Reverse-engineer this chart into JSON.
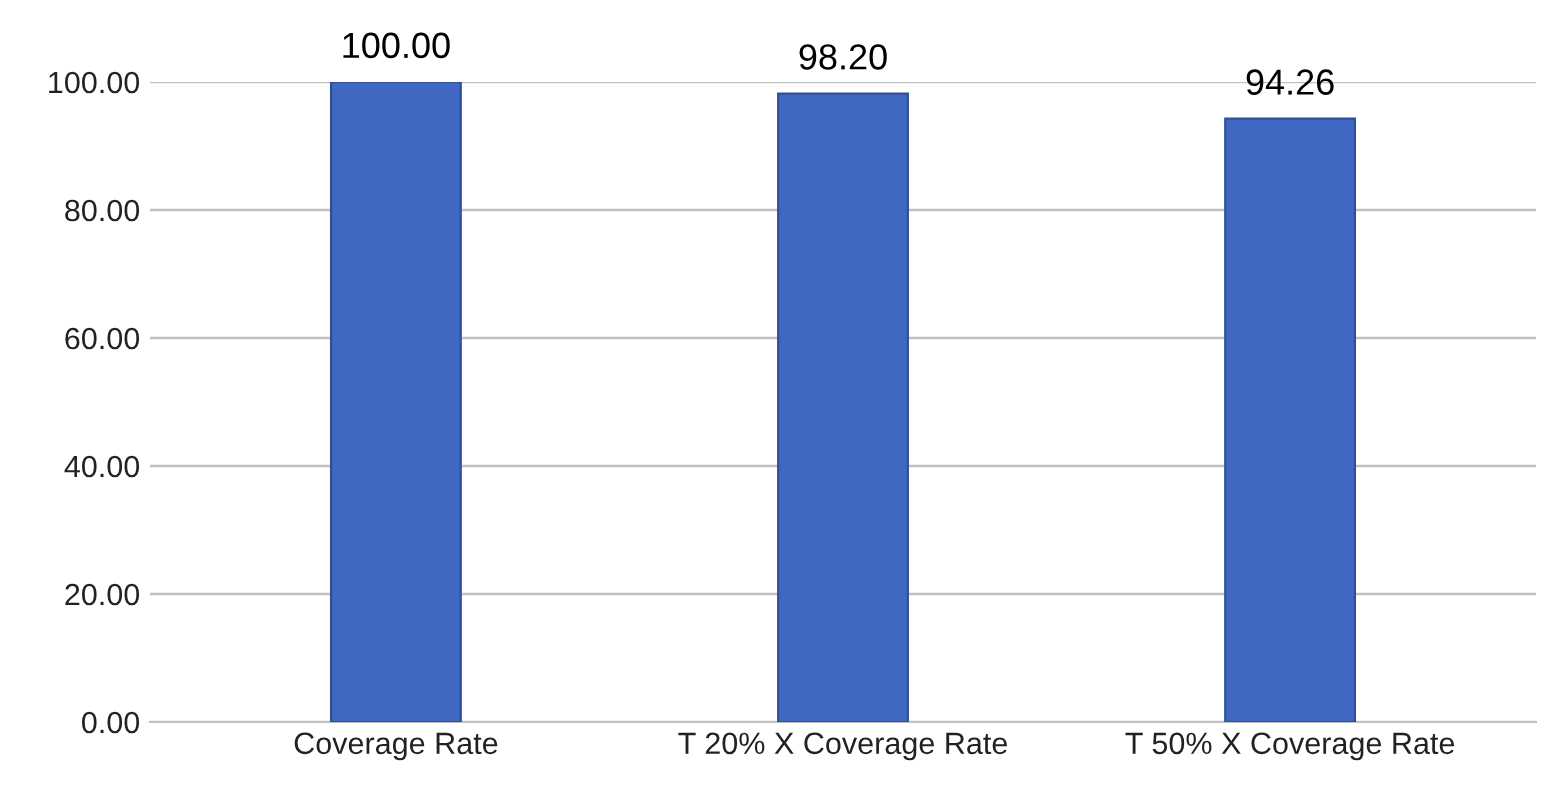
{
  "chart_data": {
    "type": "bar",
    "categories": [
      "Coverage Rate",
      "T 20% X Coverage Rate",
      "T 50% X Coverage Rate"
    ],
    "values": [
      100.0,
      98.2,
      94.26
    ],
    "value_labels": [
      "100.00",
      "98.20",
      "94.26"
    ],
    "color": "#4068c0",
    "ylim": [
      0,
      100
    ],
    "yticks": [
      {
        "value": 0,
        "label": "0.00"
      },
      {
        "value": 20,
        "label": "20.00"
      },
      {
        "value": 40,
        "label": "40.00"
      },
      {
        "value": 60,
        "label": "60.00"
      },
      {
        "value": 80,
        "label": "80.00"
      },
      {
        "value": 100,
        "label": "100.00"
      }
    ],
    "grid": "y"
  }
}
